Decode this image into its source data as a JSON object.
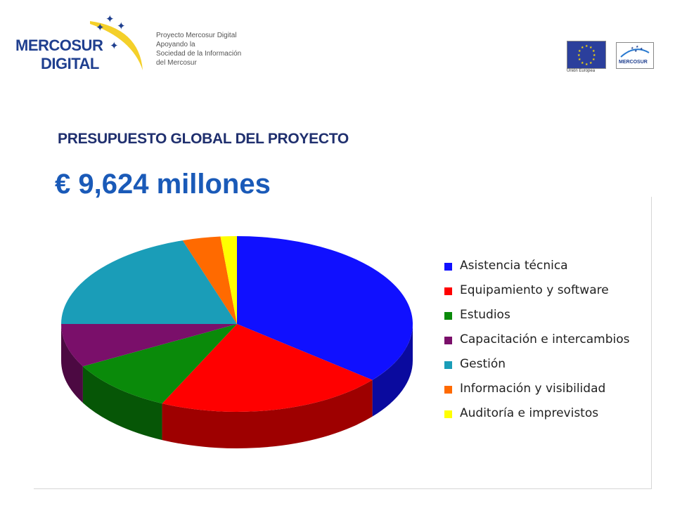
{
  "header": {
    "logo_line1": "MERCOSUR",
    "logo_line2": "DIGITAL",
    "tagline": [
      "Proyecto Mercosur Digital",
      "Apoyando la",
      "Sociedad de la Información",
      "del Mercosur"
    ],
    "eu_caption": "Unión Europea",
    "mercosur_badge": "MERCOSUR"
  },
  "title": "PRESUPUESTO GLOBAL DEL PROYECTO",
  "amount": "€ 9,624 millones",
  "chart_data": {
    "type": "pie",
    "style": "3d",
    "legend_position": "right",
    "series": [
      {
        "label": "Asistencia técnica",
        "value": 36.0,
        "color": "#1010ff"
      },
      {
        "label": "Equipamiento y software",
        "value": 21.0,
        "color": "#ff0000"
      },
      {
        "label": "Estudios",
        "value": 10.0,
        "color": "#0a8a0a"
      },
      {
        "label": "Capacitación e intercambios",
        "value": 8.0,
        "color": "#7a0f6a"
      },
      {
        "label": "Gestión",
        "value": 20.0,
        "color": "#1a9db8"
      },
      {
        "label": "Información y visibilidad",
        "value": 3.5,
        "color": "#ff6a00"
      },
      {
        "label": "Auditoría e imprevistos",
        "value": 1.5,
        "color": "#ffff00"
      }
    ]
  }
}
